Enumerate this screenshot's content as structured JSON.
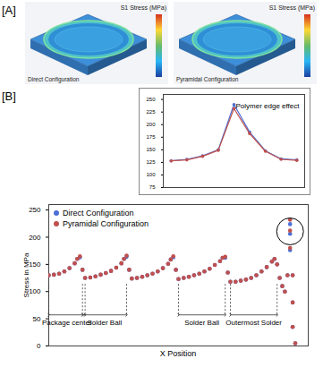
{
  "panel_a": {
    "label": "[A]",
    "images": [
      {
        "title": "S1 Stress (MPa)",
        "caption": "Direct Configuration"
      },
      {
        "title": "S1 Stress (MPa)",
        "caption": "Pyramidal Configuration"
      }
    ]
  },
  "panel_b": {
    "label": "[B]"
  },
  "chart_data": [
    {
      "type": "line",
      "marker": "circle",
      "annotations": [
        {
          "text": "Polymer edge effect"
        }
      ],
      "x": [
        1,
        2,
        3,
        4,
        5,
        6,
        7,
        8,
        9
      ],
      "xlim": [
        0.5,
        9.5
      ],
      "ylim": [
        75,
        260
      ],
      "yticks": [
        75,
        100,
        125,
        150,
        175,
        200,
        225,
        250
      ],
      "tick_labels": "y",
      "series": [
        {
          "name": "Direct Configuration",
          "color": "#4a6fd6",
          "values": [
            128,
            131,
            138,
            150,
            240,
            185,
            148,
            132,
            130
          ]
        },
        {
          "name": "Pyramidal Configuration",
          "color": "#c0504d",
          "values": [
            128,
            130,
            137,
            149,
            232,
            182,
            147,
            131,
            129
          ]
        }
      ]
    },
    {
      "type": "scatter",
      "marker": "circle",
      "x_label": "X Position",
      "y_label": "Stress in MPa",
      "legend": "top-left",
      "tick_labels": "y",
      "xlim": [
        0,
        100
      ],
      "ylim": [
        0,
        260
      ],
      "yticks": [
        0,
        50,
        100,
        150,
        200,
        250
      ],
      "annotations": [
        {
          "text": "Solder Ball",
          "x": [
            13,
            30
          ]
        },
        {
          "text": "Solder Ball",
          "x": [
            50,
            68
          ]
        },
        {
          "text": "Package center",
          "x": [
            0,
            14
          ]
        },
        {
          "text": "Outermost Solder",
          "x": [
            70,
            88
          ]
        }
      ],
      "x": [
        0,
        2,
        4,
        6,
        8,
        10,
        11,
        12,
        13,
        14,
        16,
        18,
        20,
        22,
        24,
        26,
        28,
        29,
        30,
        31,
        32,
        34,
        36,
        38,
        40,
        42,
        44,
        46,
        47,
        48,
        49,
        50,
        52,
        54,
        56,
        58,
        60,
        62,
        64,
        66,
        67,
        68,
        69,
        70,
        72,
        74,
        76,
        78,
        80,
        82,
        84,
        86,
        87,
        88,
        89,
        90,
        91,
        92,
        93,
        93,
        93,
        94,
        94,
        94,
        95
      ],
      "series": [
        {
          "name": "Direct Configuration",
          "color": "#4a6fd6",
          "values": [
            130,
            131,
            133,
            137,
            143,
            152,
            160,
            163,
            140,
            125,
            126,
            128,
            131,
            134,
            138,
            144,
            152,
            160,
            164,
            140,
            124,
            125,
            127,
            130,
            133,
            137,
            143,
            151,
            159,
            163,
            140,
            123,
            125,
            127,
            130,
            133,
            137,
            142,
            149,
            156,
            162,
            162,
            135,
            118,
            118,
            120,
            122,
            125,
            130,
            137,
            145,
            155,
            160,
            150,
            125,
            110,
            100,
            130,
            224,
            206,
            176,
            130,
            80,
            35,
            5
          ]
        },
        {
          "name": "Pyramidal Configuration",
          "color": "#c0504d",
          "values": [
            130,
            131,
            133,
            137,
            143,
            152,
            160,
            165,
            140,
            125,
            126,
            128,
            131,
            134,
            138,
            144,
            152,
            160,
            166,
            140,
            124,
            125,
            127,
            130,
            133,
            137,
            143,
            151,
            159,
            165,
            140,
            123,
            125,
            127,
            130,
            133,
            137,
            142,
            149,
            156,
            162,
            164,
            135,
            118,
            118,
            120,
            122,
            125,
            130,
            137,
            145,
            155,
            160,
            150,
            125,
            110,
            100,
            130,
            232,
            212,
            180,
            130,
            80,
            35,
            5
          ]
        }
      ]
    }
  ]
}
